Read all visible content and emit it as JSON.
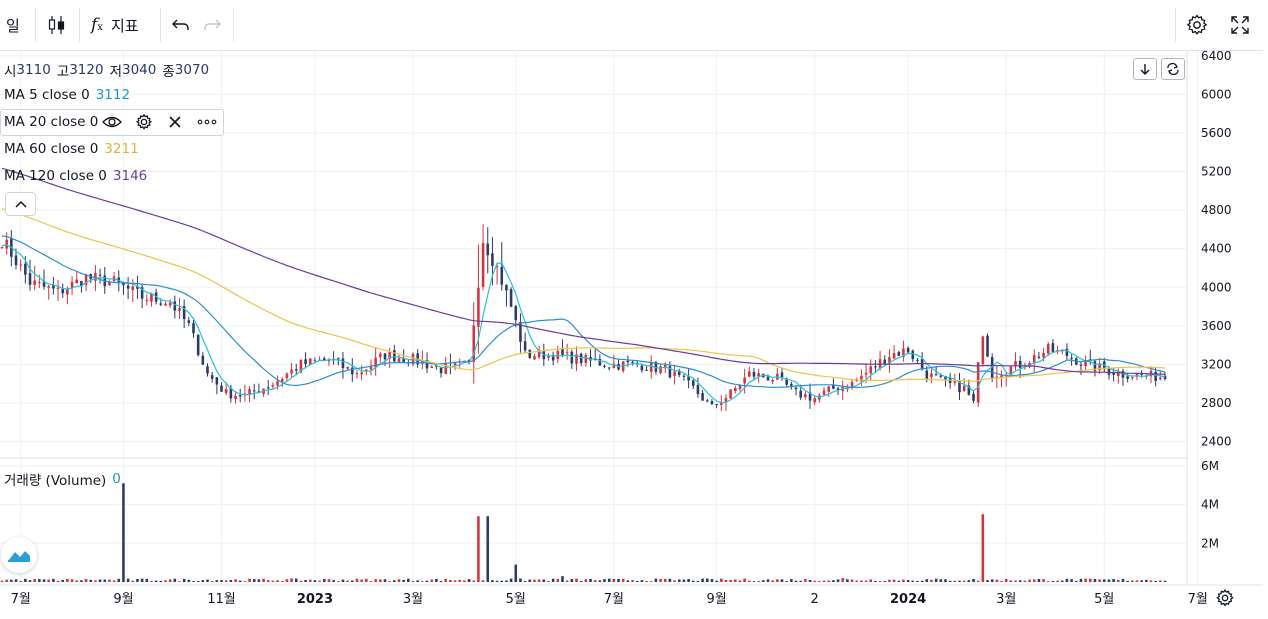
{
  "toolbar": {
    "interval_label": "일",
    "indicators_label": "지표",
    "icons": [
      "candles-icon",
      "fx-icon",
      "undo-icon",
      "redo-icon",
      "settings-icon",
      "fullscreen-icon"
    ]
  },
  "legend": {
    "ohlc": [
      {
        "key": "시",
        "value": "3110"
      },
      {
        "key": "고",
        "value": "3120"
      },
      {
        "key": "저",
        "value": "3040"
      },
      {
        "key": "종",
        "value": "3070"
      }
    ],
    "ma": [
      {
        "label": "MA 5 close 0",
        "value": "3112",
        "color": "#2196c9"
      },
      {
        "label": "MA 20 close 0",
        "value": "",
        "color": "#2196c9"
      },
      {
        "label": "MA 60 close 0",
        "value": "3211",
        "color": "#e0b43a"
      },
      {
        "label": "MA 120 close 0",
        "value": "3146",
        "color": "#6a3d9a"
      }
    ],
    "volume_label": "거래량 (Volume)",
    "volume_value": "0"
  },
  "colors": {
    "up": "#d3343d",
    "down": "#2b3a67",
    "ma5": "#27c2d8",
    "ma20": "#2b8fd4",
    "ma60": "#f0c24a",
    "ma120": "#6a3d9a",
    "grid": "#eef0f3"
  },
  "chart_data": {
    "type": "candlestick",
    "x_ticks": [
      "7월",
      "9월",
      "11월",
      "2023",
      "3월",
      "5월",
      "7월",
      "9월",
      "2",
      "2024",
      "3월",
      "5월",
      "7월"
    ],
    "y_ticks": [
      "6400",
      "6000",
      "5600",
      "5200",
      "4800",
      "4400",
      "4000",
      "3600",
      "3200",
      "2800",
      "2400"
    ],
    "volume_ticks": [
      "6M",
      "4M",
      "2M"
    ],
    "ylim": [
      2250,
      6450
    ],
    "volume_ylim": [
      0,
      6200000
    ],
    "bars_count": 250,
    "close_anchors": [
      [
        0,
        4500
      ],
      [
        6,
        4050
      ],
      [
        12,
        3950
      ],
      [
        18,
        4100
      ],
      [
        24,
        4050
      ],
      [
        30,
        3900
      ],
      [
        36,
        3850
      ],
      [
        40,
        3600
      ],
      [
        44,
        3100
      ],
      [
        48,
        2900
      ],
      [
        52,
        2880
      ],
      [
        58,
        3000
      ],
      [
        64,
        3200
      ],
      [
        70,
        3250
      ],
      [
        76,
        3100
      ],
      [
        82,
        3300
      ],
      [
        88,
        3250
      ],
      [
        94,
        3150
      ],
      [
        100,
        3200
      ],
      [
        103,
        4500
      ],
      [
        106,
        4200
      ],
      [
        109,
        3800
      ],
      [
        112,
        3300
      ],
      [
        118,
        3300
      ],
      [
        124,
        3250
      ],
      [
        130,
        3200
      ],
      [
        136,
        3200
      ],
      [
        142,
        3150
      ],
      [
        148,
        2950
      ],
      [
        152,
        2750
      ],
      [
        156,
        2900
      ],
      [
        160,
        3100
      ],
      [
        166,
        3050
      ],
      [
        170,
        2900
      ],
      [
        174,
        2850
      ],
      [
        178,
        2950
      ],
      [
        182,
        3000
      ],
      [
        186,
        3150
      ],
      [
        190,
        3300
      ],
      [
        194,
        3350
      ],
      [
        198,
        3100
      ],
      [
        202,
        3000
      ],
      [
        206,
        2950
      ],
      [
        208,
        2800
      ],
      [
        210,
        3550
      ],
      [
        212,
        3100
      ],
      [
        218,
        3200
      ],
      [
        224,
        3350
      ],
      [
        228,
        3300
      ],
      [
        232,
        3200
      ],
      [
        236,
        3150
      ],
      [
        240,
        3100
      ],
      [
        249,
        3070
      ]
    ],
    "ma_values_last": {
      "MA 5": 3112,
      "MA 60": 3211,
      "MA 120": 3146
    },
    "volume_spikes": [
      [
        26,
        5100000
      ],
      [
        102,
        3400000
      ],
      [
        104,
        3400000
      ],
      [
        110,
        900000
      ],
      [
        120,
        300000
      ],
      [
        180,
        200000
      ],
      [
        210,
        3500000
      ]
    ]
  }
}
